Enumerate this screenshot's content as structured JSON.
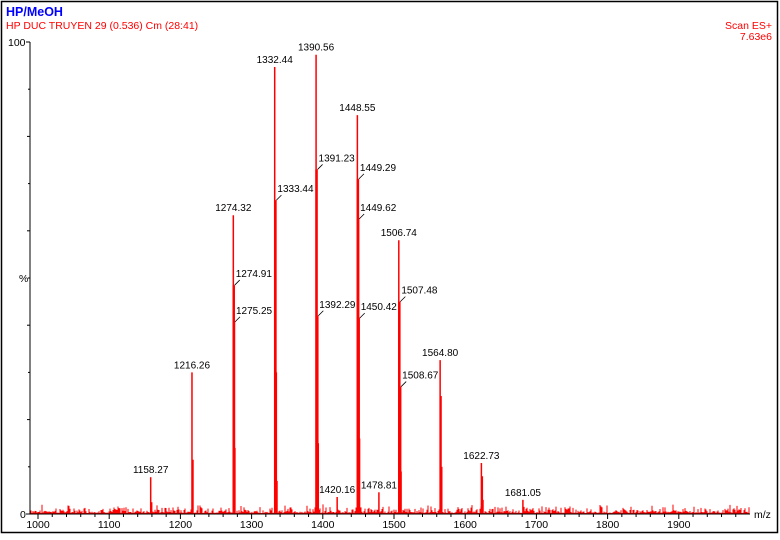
{
  "header": {
    "title": "HP/MeOH",
    "subtitle": "HP DUC TRUYEN 29 (0.536) Cm (28:41)",
    "scan_mode": "Scan ES+",
    "base_intensity": "7.63e6"
  },
  "colors": {
    "title": "#0000ff",
    "trace": "#ff0000",
    "axis": "#000000"
  },
  "chart_data": {
    "type": "bar",
    "title": "HP/MeOH",
    "xlabel": "m/z",
    "ylabel": "%",
    "xlim": [
      989,
      2000
    ],
    "ylim": [
      0,
      100
    ],
    "x_ticks": [
      1000,
      1100,
      1200,
      1300,
      1400,
      1500,
      1600,
      1700,
      1800,
      1900
    ],
    "y_tick_labels": [
      "100",
      "%",
      "0"
    ],
    "labeled_peaks": [
      {
        "mz": 1158.27,
        "intensity": 7.8,
        "label": "1158.27",
        "style": "top"
      },
      {
        "mz": 1216.26,
        "intensity": 30.0,
        "label": "1216.26",
        "style": "top"
      },
      {
        "mz": 1274.32,
        "intensity": 63.3,
        "label": "1274.32",
        "style": "top"
      },
      {
        "mz": 1274.91,
        "intensity": 48.5,
        "label": "1274.91",
        "style": "side"
      },
      {
        "mz": 1275.25,
        "intensity": 40.7,
        "label": "1275.25",
        "style": "side"
      },
      {
        "mz": 1332.44,
        "intensity": 94.7,
        "label": "1332.44",
        "style": "top"
      },
      {
        "mz": 1333.44,
        "intensity": 66.5,
        "label": "1333.44",
        "style": "side"
      },
      {
        "mz": 1390.56,
        "intensity": 97.3,
        "label": "1390.56",
        "style": "top"
      },
      {
        "mz": 1391.23,
        "intensity": 73.0,
        "label": "1391.23",
        "style": "side"
      },
      {
        "mz": 1392.29,
        "intensity": 42.0,
        "label": "1392.29",
        "style": "side"
      },
      {
        "mz": 1420.16,
        "intensity": 3.6,
        "label": "1420.16",
        "style": "top"
      },
      {
        "mz": 1448.55,
        "intensity": 84.5,
        "label": "1448.55",
        "style": "top"
      },
      {
        "mz": 1449.29,
        "intensity": 71.0,
        "label": "1449.29",
        "style": "side"
      },
      {
        "mz": 1449.62,
        "intensity": 62.5,
        "label": "1449.62",
        "style": "side"
      },
      {
        "mz": 1450.42,
        "intensity": 41.5,
        "label": "1450.42",
        "style": "side"
      },
      {
        "mz": 1478.81,
        "intensity": 4.6,
        "label": "1478.81",
        "style": "top"
      },
      {
        "mz": 1506.74,
        "intensity": 58.0,
        "label": "1506.74",
        "style": "top"
      },
      {
        "mz": 1507.48,
        "intensity": 45.0,
        "label": "1507.48",
        "style": "side"
      },
      {
        "mz": 1508.67,
        "intensity": 27.0,
        "label": "1508.67",
        "style": "side"
      },
      {
        "mz": 1564.8,
        "intensity": 32.6,
        "label": "1564.80",
        "style": "top"
      },
      {
        "mz": 1622.73,
        "intensity": 10.8,
        "label": "1622.73",
        "style": "top"
      },
      {
        "mz": 1681.05,
        "intensity": 3.0,
        "label": "1681.05",
        "style": "top"
      }
    ],
    "minor_peaks": [
      {
        "mz": 1217.3,
        "intensity": 11.5
      },
      {
        "mz": 1159.3,
        "intensity": 2.5
      },
      {
        "mz": 1276.2,
        "intensity": 14
      },
      {
        "mz": 1334.4,
        "intensity": 30
      },
      {
        "mz": 1335.3,
        "intensity": 7
      },
      {
        "mz": 1393.3,
        "intensity": 15
      },
      {
        "mz": 1451.3,
        "intensity": 16
      },
      {
        "mz": 1509.6,
        "intensity": 9
      },
      {
        "mz": 1565.7,
        "intensity": 25
      },
      {
        "mz": 1566.7,
        "intensity": 10
      },
      {
        "mz": 1623.7,
        "intensity": 8
      },
      {
        "mz": 1624.6,
        "intensity": 3
      },
      {
        "mz": 1682.0,
        "intensity": 1.5
      }
    ]
  }
}
